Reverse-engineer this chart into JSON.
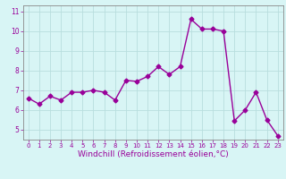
{
  "x": [
    0,
    1,
    2,
    3,
    4,
    5,
    6,
    7,
    8,
    9,
    10,
    11,
    12,
    13,
    14,
    15,
    16,
    17,
    18,
    19,
    20,
    21,
    22,
    23
  ],
  "y": [
    6.6,
    6.3,
    6.7,
    6.5,
    6.9,
    6.9,
    7.0,
    6.9,
    6.5,
    7.5,
    7.45,
    7.7,
    8.2,
    7.8,
    8.2,
    10.6,
    10.1,
    10.1,
    10.0,
    5.45,
    6.0,
    6.9,
    5.5,
    4.7
  ],
  "line_color": "#990099",
  "marker": "D",
  "marker_size": 2.5,
  "linewidth": 1.0,
  "background_color": "#d8f5f5",
  "grid_color": "#b8dede",
  "xlim": [
    -0.5,
    23.5
  ],
  "ylim": [
    4.5,
    11.3
  ],
  "yticks": [
    5,
    6,
    7,
    8,
    9,
    10,
    11
  ],
  "xticks": [
    0,
    1,
    2,
    3,
    4,
    5,
    6,
    7,
    8,
    9,
    10,
    11,
    12,
    13,
    14,
    15,
    16,
    17,
    18,
    19,
    20,
    21,
    22,
    23
  ],
  "xlabel": "Windchill (Refroidissement éolien,°C)",
  "xlabel_fontsize": 6.5,
  "tick_fontsize": 5.5,
  "axis_label_color": "#990099",
  "spine_color": "#888888"
}
